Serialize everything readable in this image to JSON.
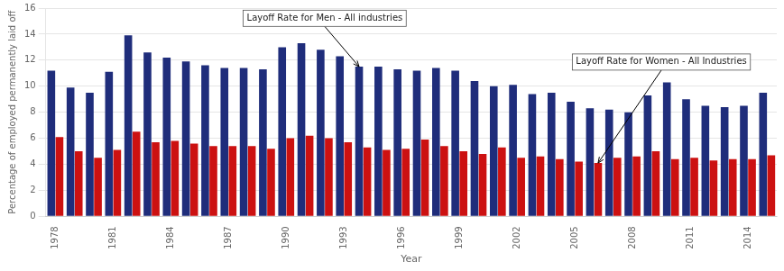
{
  "chart_data": {
    "type": "bar",
    "xlabel": "Year",
    "ylabel": "Percentage of employed permanently laid off",
    "categories": [
      "1978",
      null,
      null,
      "1981",
      null,
      null,
      "1984",
      null,
      null,
      "1987",
      null,
      null,
      "1990",
      null,
      null,
      "1993",
      null,
      null,
      "1996",
      null,
      null,
      "1999",
      null,
      null,
      "2002",
      null,
      null,
      "2005",
      null,
      null,
      "2008",
      null,
      null,
      "2011",
      null,
      null,
      "2014",
      null
    ],
    "series": [
      {
        "color": "#1f2d7b",
        "values": [
          11.2,
          9.9,
          9.5,
          11.1,
          13.9,
          12.6,
          12.2,
          11.9,
          11.6,
          11.4,
          11.4,
          11.3,
          13.0,
          13.3,
          12.8,
          12.3,
          11.5,
          11.5,
          11.3,
          11.2,
          11.4,
          11.2,
          10.4,
          10.0,
          10.1,
          9.4,
          9.5,
          8.8,
          8.3,
          8.2,
          8.0,
          9.3,
          10.3,
          9.0,
          8.5,
          8.4,
          8.5,
          9.5
        ]
      },
      {
        "color": "#cc1111",
        "values": [
          6.1,
          5.0,
          4.5,
          5.1,
          6.5,
          5.7,
          5.8,
          5.6,
          5.4,
          5.4,
          5.4,
          5.2,
          6.0,
          6.2,
          6.0,
          5.7,
          5.3,
          5.1,
          5.2,
          5.9,
          5.4,
          5.0,
          4.8,
          5.3,
          4.5,
          4.6,
          4.4,
          4.2,
          4.1,
          4.5,
          4.6,
          5.0,
          4.4,
          4.5,
          4.3,
          4.4,
          4.4,
          4.7
        ]
      }
    ],
    "ylim": [
      0,
      16
    ],
    "yticks": [
      0,
      2,
      4,
      6,
      8,
      10,
      12,
      14,
      16
    ],
    "grid": true,
    "annotations": [
      {
        "text": "Layoff Rate for Men - All industries"
      },
      {
        "text": "Layoff Rate for Women - All Industries"
      }
    ]
  }
}
